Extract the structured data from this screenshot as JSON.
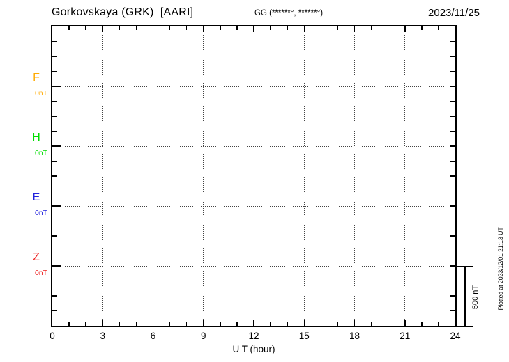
{
  "header": {
    "title": "Gorkovskaya (GRK)  [AARI]",
    "coords": "GG (******°, ******°)",
    "date": "2023/11/25"
  },
  "channels": [
    {
      "label": "F",
      "unit": "0nT",
      "color": "#FFAA00"
    },
    {
      "label": "H",
      "unit": "0nT",
      "color": "#00DD00"
    },
    {
      "label": "E",
      "unit": "0nT",
      "color": "#2222DD"
    },
    {
      "label": "Z",
      "unit": "0nT",
      "color": "#EE2222"
    }
  ],
  "xaxis": {
    "label": "U T (hour)",
    "tick_labels": [
      "0",
      "3",
      "6",
      "9",
      "12",
      "15",
      "18",
      "21",
      "24"
    ],
    "min": 0,
    "max": 24,
    "minor_step_hours": 1,
    "major_step_hours": 3
  },
  "scale_bar": {
    "label": "500 nT"
  },
  "footer_note": "Plotted at 2023/12/01 21:13 UT",
  "chart_data": {
    "type": "line",
    "title": "Gorkovskaya (GRK) [AARI] magnetogram for 2023/11/25",
    "xlabel": "U T (hour)",
    "xlim": [
      0,
      24
    ],
    "x_major_ticks": [
      0,
      3,
      6,
      9,
      12,
      15,
      18,
      21,
      24
    ],
    "x_minor_step": 1,
    "y_minor_divisions_per_channel": 4,
    "y_scale": "500 nT spans 4 minor divisions (125 nT per division)",
    "grid": "dotted vertical lines every 3 h; dotted horizontal line at each channel 0 nT baseline",
    "series": [
      {
        "name": "F",
        "color": "#FFAA00",
        "baseline_nT": 0,
        "x": [
          0,
          0.5
        ],
        "values": [
          0,
          0
        ]
      },
      {
        "name": "H",
        "color": "#00DD00",
        "baseline_nT": 0,
        "x": [
          0,
          0.5
        ],
        "values": [
          0,
          0
        ]
      },
      {
        "name": "E",
        "color": "#2222DD",
        "baseline_nT": 0,
        "x": [
          0,
          0.5
        ],
        "values": [
          0,
          0
        ]
      },
      {
        "name": "Z",
        "color": "#EE2222",
        "baseline_nT": 0,
        "x": [
          0,
          0.5
        ],
        "values": [
          0,
          0
        ]
      }
    ],
    "note": "Only a short flat trace near hour 0 is drawn at each 0 nT baseline; the remainder of the day shows no data (dotted baseline only)."
  }
}
